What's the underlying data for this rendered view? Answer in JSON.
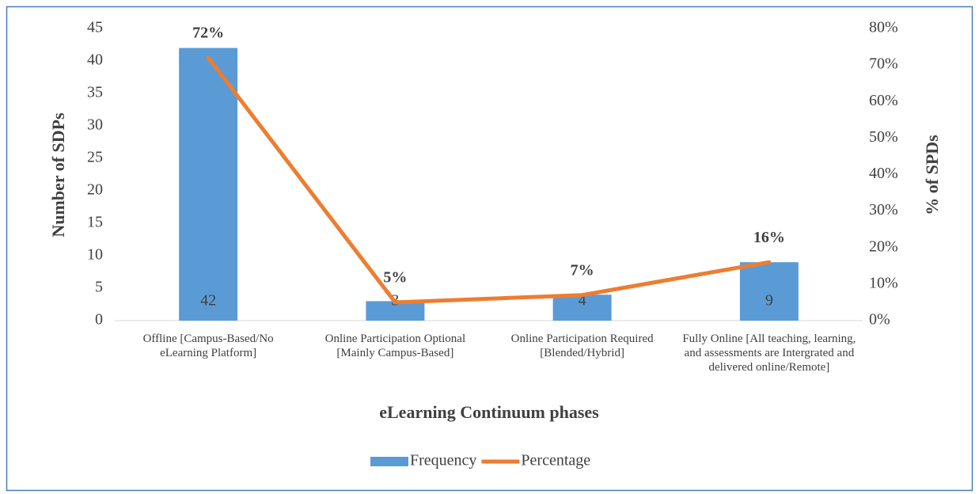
{
  "chart_data": {
    "type": "bar",
    "x_label": "eLearning Continuum phases",
    "y_label": "Number of SDPs",
    "y2_label": "% of SPDs",
    "categories": [
      "Offline [Campus-Based/No eLearning Platform]",
      "Online Participation Optional [Mainly Campus-Based]",
      "Online Participation Required [Blended/Hybrid]",
      "Fully Online [All teaching, learning, and assessments are Intergrated and delivered online/Remote]"
    ],
    "series": [
      {
        "name": "Frequency",
        "type": "bar",
        "color": "#5b9bd5",
        "values": [
          42,
          3,
          4,
          9
        ]
      },
      {
        "name": "Percentage",
        "type": "line",
        "axis": "y2",
        "color": "#ed7d31",
        "values": [
          72,
          5,
          7,
          16
        ],
        "value_labels": [
          "72%",
          "5%",
          "7%",
          "16%"
        ]
      }
    ],
    "ylim": [
      0,
      45
    ],
    "yticks": [
      0,
      5,
      10,
      15,
      20,
      25,
      30,
      35,
      40,
      45
    ],
    "y2lim": [
      0,
      80
    ],
    "y2ticks": [
      {
        "value": 0,
        "label": "0%"
      },
      {
        "value": 10,
        "label": "10%"
      },
      {
        "value": 20,
        "label": "20%"
      },
      {
        "value": 30,
        "label": "30%"
      },
      {
        "value": 40,
        "label": "40%"
      },
      {
        "value": 50,
        "label": "50%"
      },
      {
        "value": 60,
        "label": "60%"
      },
      {
        "value": 70,
        "label": "70%"
      },
      {
        "value": 80,
        "label": "80%"
      }
    ],
    "legend": "bottom",
    "grid": false
  }
}
